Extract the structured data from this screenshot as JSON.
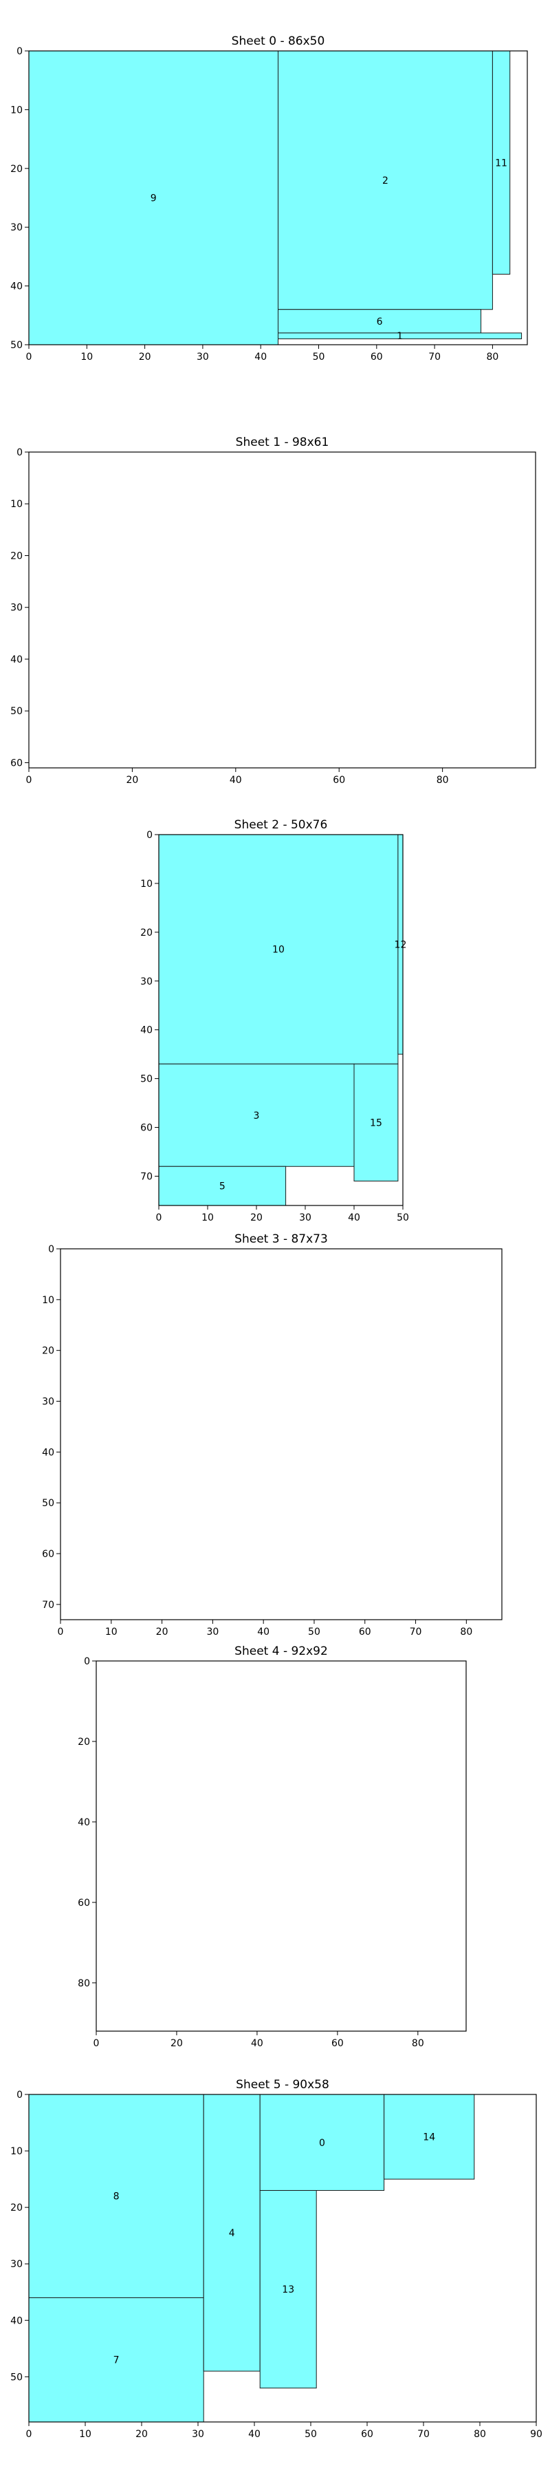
{
  "chart_data": [
    {
      "type": "rectangle-packing",
      "title": "Sheet 0 - 86x50",
      "width": 86,
      "height": 50,
      "xlim": [
        0,
        86
      ],
      "ylim": [
        0,
        50
      ],
      "xticks": [
        0,
        10,
        20,
        30,
        40,
        50,
        60,
        70,
        80
      ],
      "yticks": [
        0,
        10,
        20,
        30,
        40,
        50
      ],
      "pieces": [
        {
          "label": "9",
          "x": 0,
          "y": 0,
          "w": 43,
          "h": 50
        },
        {
          "label": "2",
          "x": 43,
          "y": 0,
          "w": 37,
          "h": 44
        },
        {
          "label": "11",
          "x": 80,
          "y": 0,
          "w": 3,
          "h": 38
        },
        {
          "label": "6",
          "x": 43,
          "y": 44,
          "w": 35,
          "h": 4
        },
        {
          "label": "1",
          "x": 43,
          "y": 48,
          "w": 42,
          "h": 1
        }
      ]
    },
    {
      "type": "rectangle-packing",
      "title": "Sheet 1 - 98x61",
      "width": 98,
      "height": 61,
      "xlim": [
        0,
        98
      ],
      "ylim": [
        0,
        61
      ],
      "xticks": [
        0,
        20,
        40,
        60,
        80
      ],
      "yticks": [
        0,
        10,
        20,
        30,
        40,
        50,
        60
      ],
      "pieces": []
    },
    {
      "type": "rectangle-packing",
      "title": "Sheet 2 - 50x76",
      "width": 50,
      "height": 76,
      "xlim": [
        0,
        50
      ],
      "ylim": [
        0,
        76
      ],
      "xticks": [
        0,
        10,
        20,
        30,
        40,
        50
      ],
      "yticks": [
        0,
        10,
        20,
        30,
        40,
        50,
        60,
        70
      ],
      "pieces": [
        {
          "label": "10",
          "x": 0,
          "y": 0,
          "w": 49,
          "h": 47
        },
        {
          "label": "12",
          "x": 49,
          "y": 0,
          "w": 1,
          "h": 45
        },
        {
          "label": "3",
          "x": 0,
          "y": 47,
          "w": 40,
          "h": 21
        },
        {
          "label": "15",
          "x": 40,
          "y": 47,
          "w": 9,
          "h": 24
        },
        {
          "label": "5",
          "x": 0,
          "y": 68,
          "w": 26,
          "h": 8
        }
      ]
    },
    {
      "type": "rectangle-packing",
      "title": "Sheet 3 - 87x73",
      "width": 87,
      "height": 73,
      "xlim": [
        0,
        87
      ],
      "ylim": [
        0,
        73
      ],
      "xticks": [
        0,
        10,
        20,
        30,
        40,
        50,
        60,
        70,
        80
      ],
      "yticks": [
        0,
        10,
        20,
        30,
        40,
        50,
        60,
        70
      ],
      "pieces": []
    },
    {
      "type": "rectangle-packing",
      "title": "Sheet 4 - 92x92",
      "width": 92,
      "height": 92,
      "xlim": [
        0,
        92
      ],
      "ylim": [
        0,
        92
      ],
      "xticks": [
        0,
        20,
        40,
        60,
        80
      ],
      "yticks": [
        0,
        20,
        40,
        60,
        80
      ],
      "pieces": []
    },
    {
      "type": "rectangle-packing",
      "title": "Sheet 5 - 90x58",
      "width": 90,
      "height": 58,
      "xlim": [
        0,
        90
      ],
      "ylim": [
        0,
        58
      ],
      "xticks": [
        0,
        10,
        20,
        30,
        40,
        50,
        60,
        70,
        80,
        90
      ],
      "yticks": [
        0,
        10,
        20,
        30,
        40,
        50
      ],
      "pieces": [
        {
          "label": "8",
          "x": 0,
          "y": 0,
          "w": 31,
          "h": 36
        },
        {
          "label": "7",
          "x": 0,
          "y": 36,
          "w": 31,
          "h": 22
        },
        {
          "label": "4",
          "x": 31,
          "y": 0,
          "w": 10,
          "h": 49
        },
        {
          "label": "0",
          "x": 41,
          "y": 0,
          "w": 22,
          "h": 17
        },
        {
          "label": "13",
          "x": 41,
          "y": 17,
          "w": 10,
          "h": 35
        },
        {
          "label": "14",
          "x": 63,
          "y": 0,
          "w": 16,
          "h": 15
        }
      ]
    }
  ],
  "colors": {
    "piece_fill": "#80ffff",
    "piece_stroke": "#1a1a1a",
    "axes": "#000000"
  }
}
